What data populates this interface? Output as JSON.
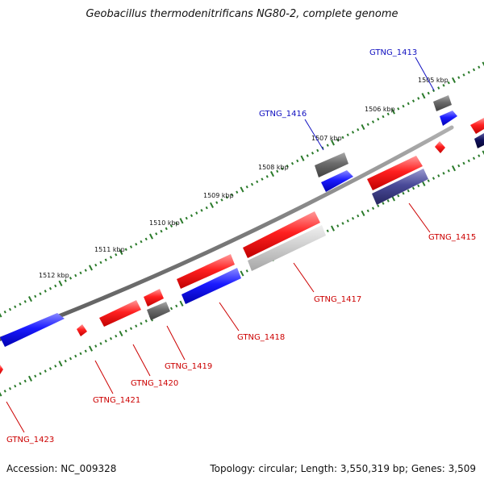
{
  "title": "Geobacillus thermodenitrificans NG80-2, complete genome",
  "accession": "Accession: NC_009328",
  "summary": "Topology: circular; Length: 3,550,319 bp; Genes: 3,509",
  "kbp_ticks": [
    "1505 kbp",
    "1506 kbp",
    "1507 kbp",
    "1508 kbp",
    "1509 kbp",
    "1510 kbp",
    "1511 kbp",
    "1512 kbp"
  ],
  "gene_labels": {
    "outer": [
      "GTNG_1413",
      "GTNG_1416"
    ],
    "inner": [
      "GTNG_1415",
      "GTNG_1417",
      "GTNG_1418",
      "GTNG_1419",
      "GTNG_1420",
      "GTNG_1421",
      "GTNG_1423"
    ]
  },
  "colors": {
    "forward_gene": "#ff2020",
    "reverse_gene": "#1a1aff",
    "pseudo_gene": "#707070",
    "dark_gene": "#3a3a90",
    "navy_gene": "#10105a",
    "light_gene": "#cccccc",
    "backbone": "#808080",
    "tick_green": "#2a7a2a",
    "outer_label": "#1010c0",
    "inner_label": "#cc0000"
  }
}
